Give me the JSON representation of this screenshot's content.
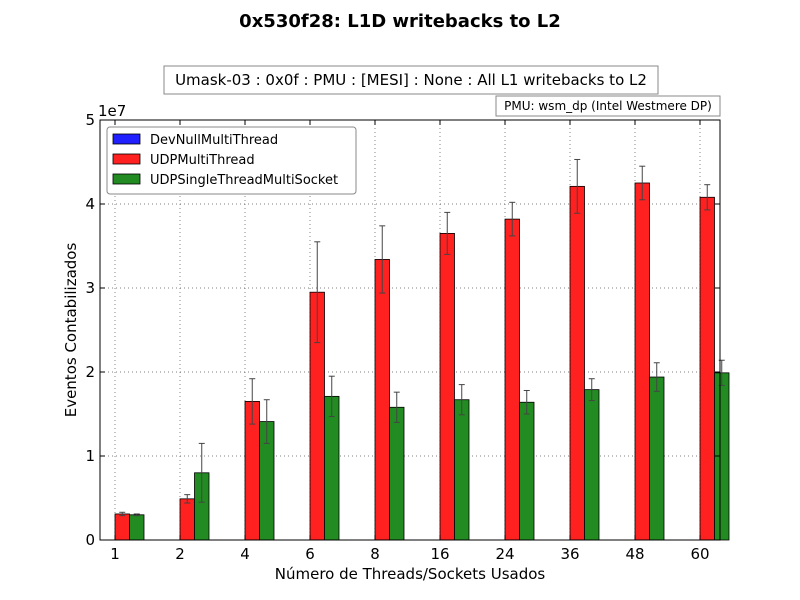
{
  "chart_data": {
    "type": "bar",
    "title": "0x530f28: L1D writebacks to L2",
    "subtitle": "Umask-03 : 0x0f : PMU : [MESI] : None : All L1 writebacks to L2",
    "pmu_label": "PMU: wsm_dp (Intel Westmere DP)",
    "xlabel": "Número de Threads/Sockets Usados",
    "ylabel": "Eventos Contabilizados",
    "y_exponent_label": "1e7",
    "ylim": [
      0,
      5
    ],
    "yticks": [
      "0",
      "1",
      "2",
      "3",
      "4",
      "5"
    ],
    "categories": [
      "1",
      "2",
      "4",
      "6",
      "8",
      "16",
      "24",
      "36",
      "48",
      "60"
    ],
    "grid": true,
    "legend_position": "top-left",
    "series": [
      {
        "name": "DevNullMultiThread",
        "color": "#1f1fff",
        "values": [
          0,
          0,
          0,
          0,
          0,
          0,
          0,
          0,
          0,
          0
        ],
        "errors": [
          0,
          0,
          0,
          0,
          0,
          0,
          0,
          0,
          0,
          0
        ]
      },
      {
        "name": "UDPMultiThread",
        "color": "#ff2020",
        "values": [
          0.31,
          0.49,
          1.65,
          2.95,
          3.34,
          3.65,
          3.82,
          4.21,
          4.25,
          4.08
        ],
        "errors": [
          0.02,
          0.05,
          0.27,
          0.6,
          0.4,
          0.25,
          0.2,
          0.32,
          0.2,
          0.15
        ]
      },
      {
        "name": "UDPSingleThreadMultiSocket",
        "color": "#228b22",
        "values": [
          0.3,
          0.8,
          1.41,
          1.71,
          1.58,
          1.67,
          1.64,
          1.79,
          1.94,
          1.99
        ],
        "errors": [
          0.01,
          0.35,
          0.26,
          0.24,
          0.18,
          0.18,
          0.14,
          0.13,
          0.17,
          0.15
        ]
      }
    ]
  }
}
